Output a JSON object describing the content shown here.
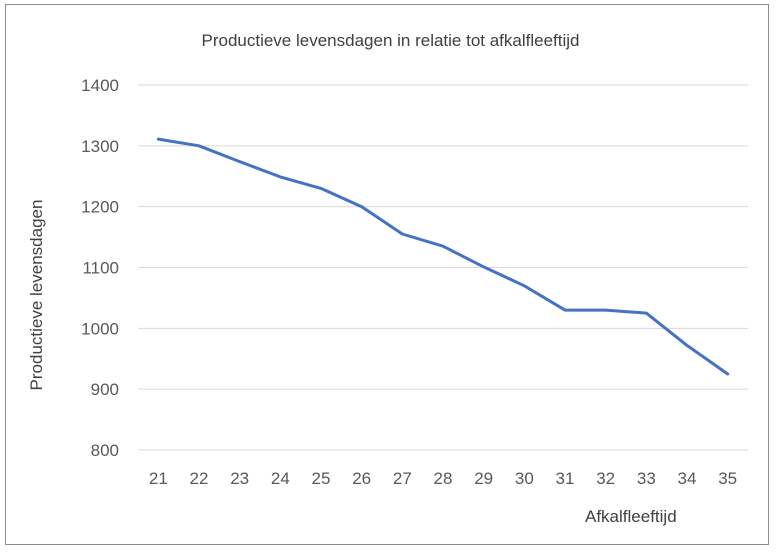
{
  "chart_data": {
    "type": "line",
    "title": "Productieve levensdagen  in relatie tot afkalfleeftijd",
    "xlabel": "Afkalfleeftijd",
    "ylabel": "Productieve levensdagen",
    "x": [
      21,
      22,
      23,
      24,
      25,
      26,
      27,
      28,
      29,
      30,
      31,
      32,
      33,
      34,
      35
    ],
    "series": [
      {
        "values": [
          1311,
          1300,
          1274,
          1249,
          1230,
          1200,
          1155,
          1135,
          1101,
          1070,
          1030,
          1030,
          1025,
          972,
          925
        ]
      }
    ],
    "ylim": [
      800,
      1400
    ],
    "yticks": [
      800,
      900,
      1000,
      1100,
      1200,
      1300,
      1400
    ],
    "grid": true,
    "line_color": "#4472c4",
    "grid_color": "#d9d9d9",
    "text_color": "#595959"
  }
}
